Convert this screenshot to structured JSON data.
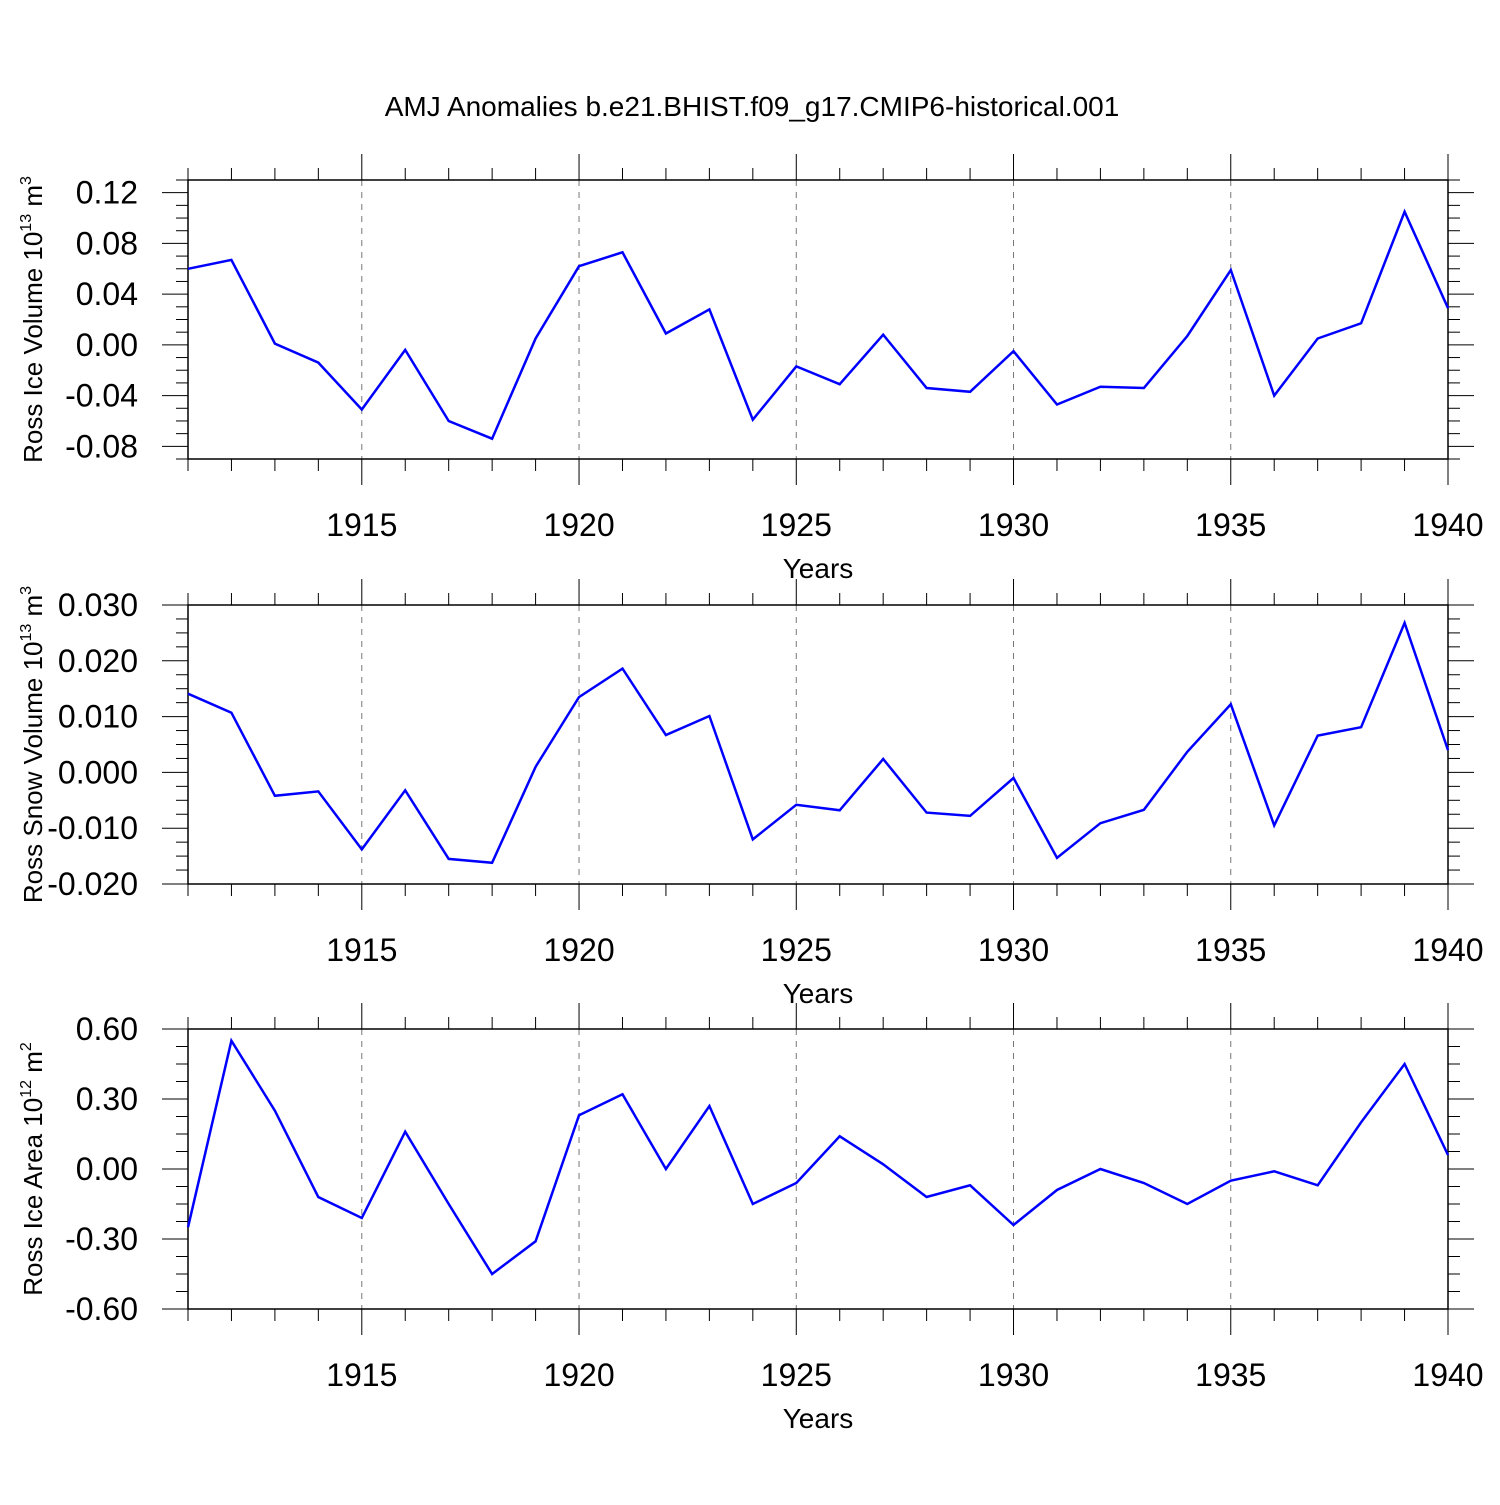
{
  "title": "AMJ Anomalies b.e21.BHIST.f09_g17.CMIP6-historical.001",
  "chart_data": [
    {
      "type": "line",
      "ylabel": "Ross Ice Volume 10",
      "ylabel_exp": "13",
      "ylabel_unit": " m",
      "ylabel_unit_exp": "3",
      "xlabel": "Years",
      "xlim": [
        1911,
        1940
      ],
      "ylim": [
        -0.09,
        0.13
      ],
      "yticks": [
        -0.08,
        -0.04,
        0.0,
        0.04,
        0.08,
        0.12
      ],
      "yticklabels": [
        "-0.08",
        "-0.04",
        "0.00",
        "0.04",
        "0.08",
        "0.12"
      ],
      "xticks": [
        1915,
        1920,
        1925,
        1930,
        1935,
        1940
      ],
      "xticklabels": [
        "1915",
        "1920",
        "1925",
        "1930",
        "1935",
        "1940"
      ],
      "line_color": "#0000ff",
      "x": [
        1911,
        1912,
        1913,
        1914,
        1915,
        1916,
        1917,
        1918,
        1919,
        1920,
        1921,
        1922,
        1923,
        1924,
        1925,
        1926,
        1927,
        1928,
        1929,
        1930,
        1931,
        1932,
        1933,
        1934,
        1935,
        1936,
        1937,
        1938,
        1939,
        1940
      ],
      "y": [
        0.06,
        0.067,
        0.001,
        -0.014,
        -0.051,
        -0.004,
        -0.06,
        -0.074,
        0.005,
        0.062,
        0.073,
        0.009,
        0.028,
        -0.059,
        -0.017,
        -0.031,
        0.008,
        -0.034,
        -0.037,
        -0.005,
        -0.047,
        -0.033,
        -0.034,
        0.007,
        0.059,
        -0.04,
        0.005,
        0.017,
        0.105,
        0.029
      ]
    },
    {
      "type": "line",
      "ylabel": "Ross Snow Volume 10",
      "ylabel_exp": "13",
      "ylabel_unit": " m",
      "ylabel_unit_exp": "3",
      "xlabel": "Years",
      "xlim": [
        1911,
        1940
      ],
      "ylim": [
        -0.02,
        0.03
      ],
      "yticks": [
        -0.02,
        -0.01,
        0.0,
        0.01,
        0.02,
        0.03
      ],
      "yticklabels": [
        "-0.020",
        "-0.010",
        "0.000",
        "0.010",
        "0.020",
        "0.030"
      ],
      "xticks": [
        1915,
        1920,
        1925,
        1930,
        1935,
        1940
      ],
      "xticklabels": [
        "1915",
        "1920",
        "1925",
        "1930",
        "1935",
        "1940"
      ],
      "line_color": "#0000ff",
      "x": [
        1911,
        1912,
        1913,
        1914,
        1915,
        1916,
        1917,
        1918,
        1919,
        1920,
        1921,
        1922,
        1923,
        1924,
        1925,
        1926,
        1927,
        1928,
        1929,
        1930,
        1931,
        1932,
        1933,
        1934,
        1935,
        1936,
        1937,
        1938,
        1939,
        1940
      ],
      "y": [
        0.0141,
        0.0107,
        -0.0042,
        -0.0034,
        -0.0138,
        -0.0032,
        -0.0155,
        -0.0162,
        0.001,
        0.0135,
        0.0186,
        0.0067,
        0.0101,
        -0.012,
        -0.0058,
        -0.0068,
        0.0024,
        -0.0072,
        -0.0078,
        -0.001,
        -0.0153,
        -0.0091,
        -0.0067,
        0.0037,
        0.0122,
        -0.0095,
        0.0066,
        0.0081,
        0.0268,
        0.004
      ]
    },
    {
      "type": "line",
      "ylabel": "Ross Ice Area 10",
      "ylabel_exp": "12",
      "ylabel_unit": " m",
      "ylabel_unit_exp": "2",
      "xlabel": "Years",
      "xlim": [
        1911,
        1940
      ],
      "ylim": [
        -0.6,
        0.6
      ],
      "yticks": [
        -0.6,
        -0.3,
        0.0,
        0.3,
        0.6
      ],
      "yticklabels": [
        "-0.60",
        "-0.30",
        "0.00",
        "0.30",
        "0.60"
      ],
      "xticks": [
        1915,
        1920,
        1925,
        1930,
        1935,
        1940
      ],
      "xticklabels": [
        "1915",
        "1920",
        "1925",
        "1930",
        "1935",
        "1940"
      ],
      "line_color": "#0000ff",
      "x": [
        1911,
        1912,
        1913,
        1914,
        1915,
        1916,
        1917,
        1918,
        1919,
        1920,
        1921,
        1922,
        1923,
        1924,
        1925,
        1926,
        1927,
        1928,
        1929,
        1930,
        1931,
        1932,
        1933,
        1934,
        1935,
        1936,
        1937,
        1938,
        1939,
        1940
      ],
      "y": [
        -0.25,
        0.55,
        0.25,
        -0.12,
        -0.21,
        0.16,
        -0.15,
        -0.45,
        -0.31,
        0.23,
        0.32,
        0.0,
        0.27,
        -0.15,
        -0.06,
        0.14,
        0.02,
        -0.12,
        -0.07,
        -0.24,
        -0.09,
        0.0,
        -0.06,
        -0.15,
        -0.05,
        -0.01,
        -0.07,
        0.2,
        0.45,
        0.06
      ]
    }
  ]
}
